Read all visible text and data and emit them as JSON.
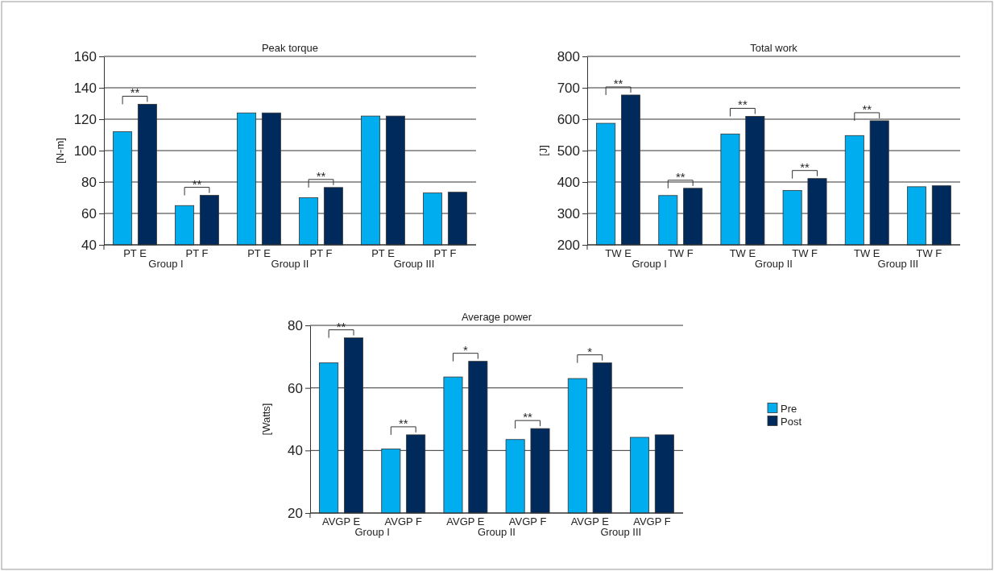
{
  "chart_data": [
    {
      "type": "bar",
      "title": "Peak torque",
      "ylabel": "[N-m]",
      "categories": [
        "PT E",
        "PT F",
        "PT E",
        "PT F",
        "PT E",
        "PT F"
      ],
      "series": [
        {
          "color": "#00aeef",
          "values": [
            112,
            65,
            124,
            70,
            122,
            73
          ]
        },
        {
          "color": "#002a5c",
          "values": [
            129.5,
            71.5,
            124,
            76.5,
            122,
            73.5
          ]
        }
      ],
      "ylim": [
        40,
        160
      ],
      "yticks": [
        40,
        60,
        80,
        100,
        120,
        140,
        160
      ],
      "grid": "y",
      "annotations": [
        "**",
        "**",
        "**",
        "Group I",
        "Group II",
        "Group III"
      ]
    },
    {
      "type": "bar",
      "title": "Total work",
      "ylabel": "[J]",
      "categories": [
        "TW E",
        "TW F",
        "TW E",
        "TW F",
        "TW E",
        "TW F"
      ],
      "series": [
        {
          "color": "#00aeef",
          "values": [
            587,
            357,
            553,
            373,
            548,
            385
          ]
        },
        {
          "color": "#002a5c",
          "values": [
            677,
            380,
            609,
            411,
            595,
            388
          ]
        }
      ],
      "ylim": [
        200,
        800
      ],
      "yticks": [
        200,
        300,
        400,
        500,
        600,
        700,
        800
      ],
      "grid": "y",
      "annotations": [
        "**",
        "**",
        "**",
        "**",
        "**",
        "Group I",
        "Group II",
        "Group III"
      ]
    },
    {
      "type": "bar",
      "title": "Average power",
      "ylabel": "[Watts]",
      "categories": [
        "AVGP E",
        "AVGP F",
        "AVGP E",
        "AVGP F",
        "AVGP E",
        "AVGP F"
      ],
      "series": [
        {
          "name": "Pre",
          "color": "#00aeef",
          "values": [
            68,
            40.5,
            63.5,
            43.5,
            63,
            44.2
          ]
        },
        {
          "name": "Post",
          "color": "#002a5c",
          "values": [
            76,
            45,
            68.5,
            47,
            68,
            45
          ]
        }
      ],
      "ylim": [
        20,
        80
      ],
      "yticks": [
        20,
        40,
        60,
        80
      ],
      "grid": "y",
      "legend": "right",
      "annotations": [
        "**",
        "**",
        "*",
        "**",
        "*",
        "Group I",
        "Group II",
        "Group III"
      ]
    }
  ]
}
